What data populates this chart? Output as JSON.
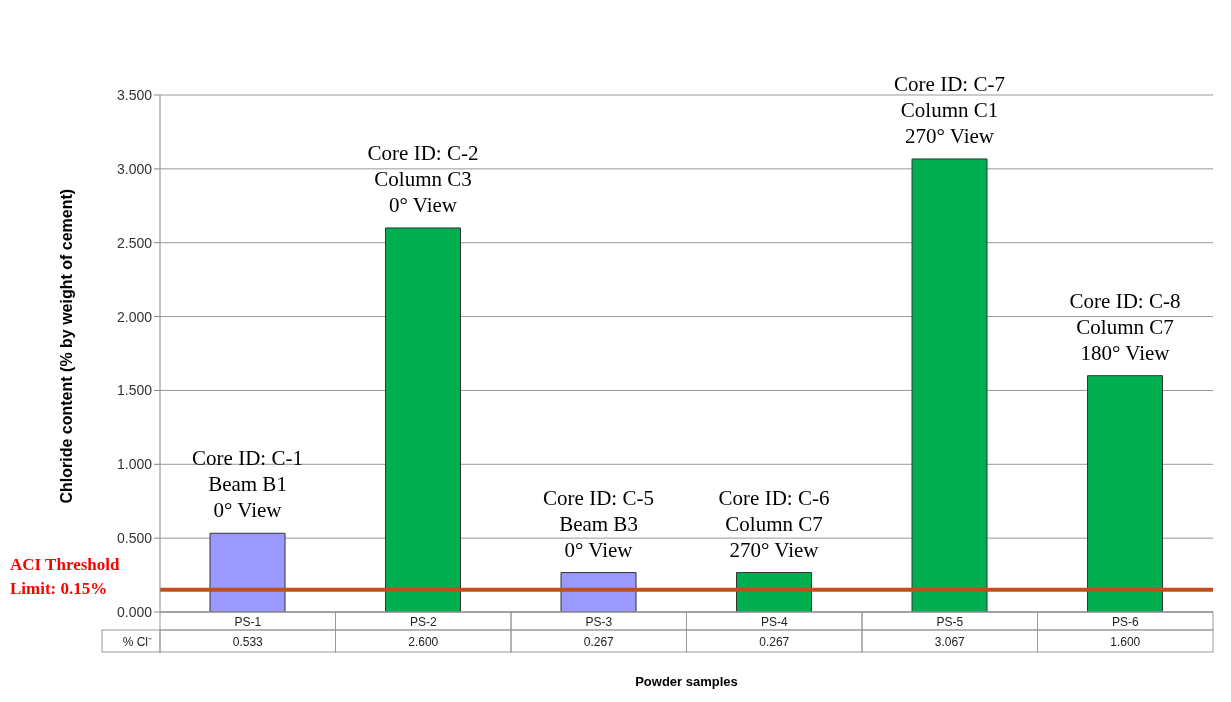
{
  "chart_data": {
    "type": "bar",
    "xlabel": "Powder samples",
    "ylabel": "Chloride content (% by weight of cement)",
    "categories": [
      "PS-1",
      "PS-2",
      "PS-3",
      "PS-4",
      "PS-5",
      "PS-6"
    ],
    "values": [
      0.533,
      2.6,
      0.267,
      0.267,
      3.067,
      1.6
    ],
    "colors": [
      "#9999ff",
      "#00b050",
      "#9999ff",
      "#00b050",
      "#00b050",
      "#00b050"
    ],
    "value_labels": [
      "0.533",
      "2.600",
      "0.267",
      "0.267",
      "3.067",
      "1.600"
    ],
    "ylim": [
      0,
      3.5
    ],
    "yticks": [
      {
        "value": 0,
        "label": "0.000"
      },
      {
        "value": 0.5,
        "label": "0.500"
      },
      {
        "value": 1,
        "label": "1.000"
      },
      {
        "value": 1.5,
        "label": "1.500"
      },
      {
        "value": 2,
        "label": "2.000"
      },
      {
        "value": 2.5,
        "label": "2.500"
      },
      {
        "value": 3,
        "label": "3.000"
      },
      {
        "value": 3.5,
        "label": "3.500"
      }
    ],
    "grid": "y",
    "ref_lines": [
      {
        "axis": "y",
        "value": 0.15,
        "label": "ACI Threshold Limit: 0.15%",
        "color": "#c0501a"
      }
    ],
    "annotations": [
      "% Cl⁻",
      {
        "text": "Core ID: C-1\nBeam B1\n0° View",
        "x": "PS-1",
        "y": 0.533
      },
      {
        "text": "Core ID: C-2\nColumn C3\n0° View",
        "x": "PS-2",
        "y": 2.6
      },
      {
        "text": "Core ID: C-5\nBeam B3\n0° View",
        "x": "PS-3",
        "y": 0.267
      },
      {
        "text": "Core ID: C-6\nColumn C7\n270° View",
        "x": "PS-4",
        "y": 0.267
      },
      {
        "text": "Core ID: C-7\nColumn C1\n270° View",
        "x": "PS-5",
        "y": 3.067
      },
      {
        "text": "Core ID: C-8\nColumn C7\n180° View",
        "x": "PS-6",
        "y": 1.6
      }
    ]
  }
}
